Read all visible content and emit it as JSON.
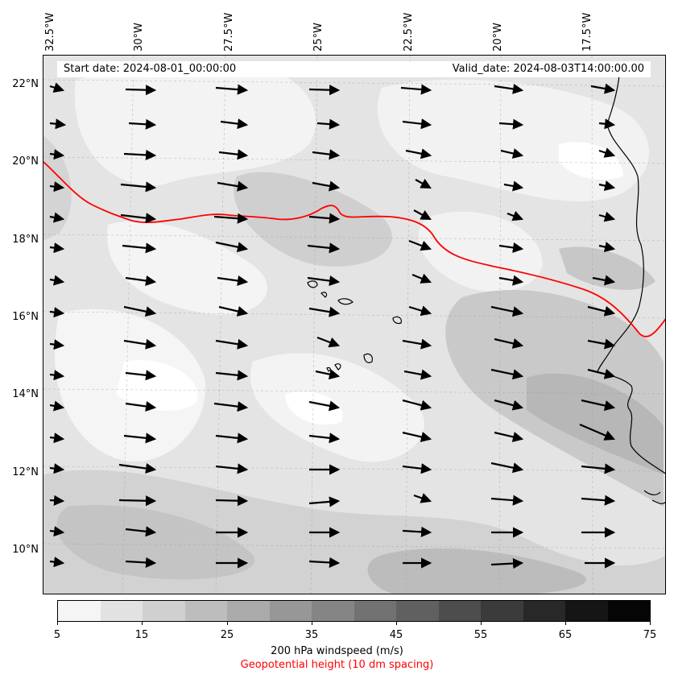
{
  "info": {
    "start_date": "Start date: 2024-08-01_00:00:00",
    "valid_date": "Valid_date: 2024-08-03T14:00:00.00"
  },
  "axes": {
    "lon_labels": [
      "32.5°W",
      "30°W",
      "27.5°W",
      "25°W",
      "22.5°W",
      "20°W",
      "17.5°W"
    ],
    "lat_labels": [
      "22°N",
      "20°N",
      "18°N",
      "16°N",
      "14°N",
      "12°N",
      "10°N"
    ],
    "extent": {
      "lon_min": -32.6,
      "lon_max": -15.5,
      "lat_min": 8.9,
      "lat_max": 22.7
    }
  },
  "colorbar": {
    "ticks": [
      "5",
      "15",
      "25",
      "35",
      "45",
      "55",
      "65",
      "75"
    ],
    "colors": [
      "#f5f5f5",
      "#e2e2e2",
      "#d0d0d0",
      "#bdbdbd",
      "#aaaaaa",
      "#979797",
      "#858585",
      "#727272",
      "#606060",
      "#4d4d4d",
      "#3b3b3b",
      "#282828",
      "#151515",
      "#050505"
    ],
    "label": "200 hPa windspeed (m/s)",
    "sublabel": "Geopotential height (10 dm spacing)",
    "sublabel_color": "#ff0000"
  },
  "contour_color": "#ff0000",
  "coast_color": "#000000"
}
